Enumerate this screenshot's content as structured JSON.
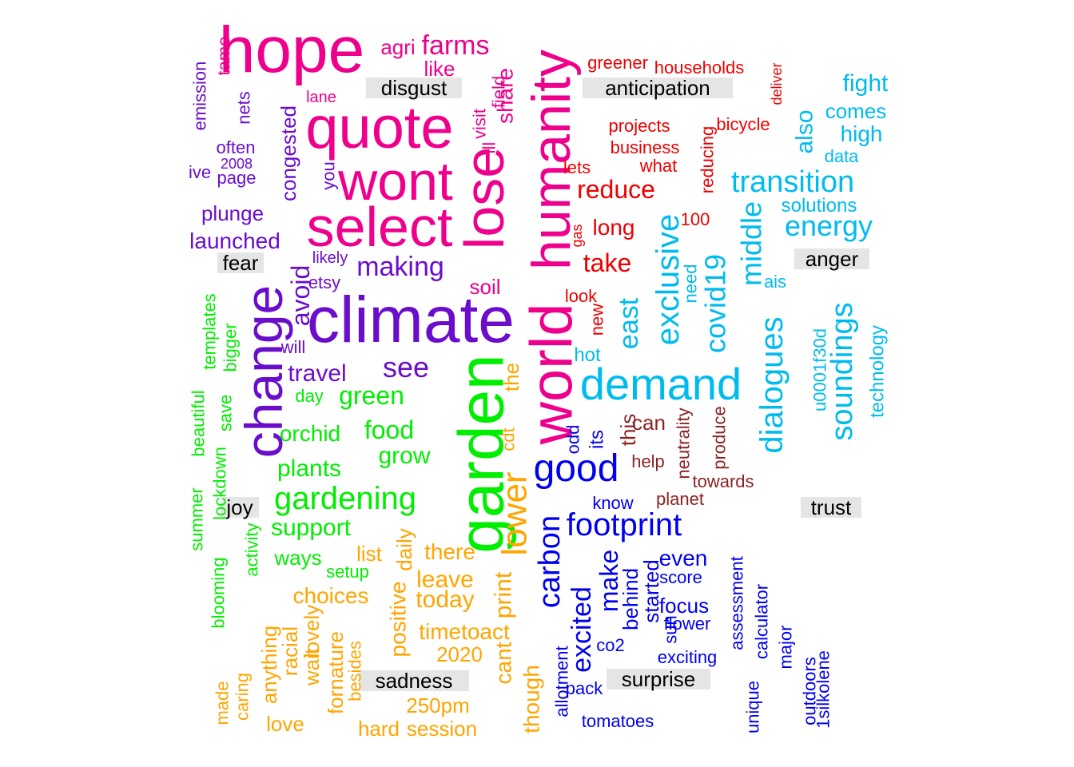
{
  "emotion_colors": {
    "disgust": "#ee008c",
    "anticipation": "#ee0000",
    "fear": "#6a0ecc",
    "anger": "#00bbee",
    "joy": "#00ee00",
    "trust": "#8b2323",
    "sadness": "#ffa500",
    "surprise": "#0000ee"
  },
  "labels": {
    "disgust": "disgust",
    "anticipation": "anticipation",
    "fear": "fear",
    "anger": "anger",
    "joy": "joy",
    "trust": "trust",
    "sadness": "sadness",
    "surprise": "surprise"
  },
  "words": [
    {
      "t": "hope",
      "e": "disgust"
    },
    {
      "t": "quote",
      "e": "disgust"
    },
    {
      "t": "wont",
      "e": "disgust"
    },
    {
      "t": "select",
      "e": "disgust"
    },
    {
      "t": "lose",
      "e": "disgust"
    },
    {
      "t": "farms",
      "e": "disgust"
    },
    {
      "t": "agri",
      "e": "disgust"
    },
    {
      "t": "like",
      "e": "disgust"
    },
    {
      "t": "visit",
      "e": "disgust"
    },
    {
      "t": "field",
      "e": "disgust"
    },
    {
      "t": "share",
      "e": "disgust"
    },
    {
      "t": "ill",
      "e": "disgust"
    },
    {
      "t": "lane",
      "e": "disgust"
    },
    {
      "t": "tame",
      "e": "disgust"
    },
    {
      "t": "soil",
      "e": "disgust"
    },
    {
      "t": "humanity",
      "e": "disgust"
    },
    {
      "t": "world",
      "e": "disgust"
    },
    {
      "t": "greener",
      "e": "anticipation"
    },
    {
      "t": "households",
      "e": "anticipation"
    },
    {
      "t": "deliver",
      "e": "anticipation"
    },
    {
      "t": "projects",
      "e": "anticipation"
    },
    {
      "t": "bicycle",
      "e": "anticipation"
    },
    {
      "t": "business",
      "e": "anticipation"
    },
    {
      "t": "what",
      "e": "anticipation"
    },
    {
      "t": "lets",
      "e": "anticipation"
    },
    {
      "t": "reducing",
      "e": "anticipation"
    },
    {
      "t": "reduce",
      "e": "anticipation"
    },
    {
      "t": "100",
      "e": "anticipation"
    },
    {
      "t": "long",
      "e": "anticipation"
    },
    {
      "t": "gas",
      "e": "anticipation"
    },
    {
      "t": "take",
      "e": "anticipation"
    },
    {
      "t": "look",
      "e": "anticipation"
    },
    {
      "t": "new",
      "e": "anticipation"
    },
    {
      "t": "emission",
      "e": "fear"
    },
    {
      "t": "nets",
      "e": "fear"
    },
    {
      "t": "congested",
      "e": "fear"
    },
    {
      "t": "often",
      "e": "fear"
    },
    {
      "t": "2008",
      "e": "fear"
    },
    {
      "t": "ive",
      "e": "fear"
    },
    {
      "t": "page",
      "e": "fear"
    },
    {
      "t": "you",
      "e": "fear"
    },
    {
      "t": "plunge",
      "e": "fear"
    },
    {
      "t": "launched",
      "e": "fear"
    },
    {
      "t": "likely",
      "e": "fear"
    },
    {
      "t": "making",
      "e": "fear"
    },
    {
      "t": "avoid",
      "e": "fear"
    },
    {
      "t": "etsy",
      "e": "fear"
    },
    {
      "t": "change",
      "e": "fear"
    },
    {
      "t": "climate",
      "e": "fear"
    },
    {
      "t": "will",
      "e": "fear"
    },
    {
      "t": "travel",
      "e": "fear"
    },
    {
      "t": "see",
      "e": "fear"
    },
    {
      "t": "fight",
      "e": "anger"
    },
    {
      "t": "comes",
      "e": "anger"
    },
    {
      "t": "high",
      "e": "anger"
    },
    {
      "t": "data",
      "e": "anger"
    },
    {
      "t": "also",
      "e": "anger"
    },
    {
      "t": "transition",
      "e": "anger"
    },
    {
      "t": "solutions",
      "e": "anger"
    },
    {
      "t": "energy",
      "e": "anger"
    },
    {
      "t": "middle",
      "e": "anger"
    },
    {
      "t": "covid19",
      "e": "anger"
    },
    {
      "t": "exclusive",
      "e": "anger"
    },
    {
      "t": "east",
      "e": "anger"
    },
    {
      "t": "need",
      "e": "anger"
    },
    {
      "t": "ais",
      "e": "anger"
    },
    {
      "t": "dialogues",
      "e": "anger"
    },
    {
      "t": "u0001f30d",
      "e": "anger"
    },
    {
      "t": "soundings",
      "e": "anger"
    },
    {
      "t": "technology",
      "e": "anger"
    },
    {
      "t": "demand",
      "e": "anger"
    },
    {
      "t": "hot",
      "e": "anger"
    },
    {
      "t": "templates",
      "e": "joy"
    },
    {
      "t": "bigger",
      "e": "joy"
    },
    {
      "t": "day",
      "e": "joy"
    },
    {
      "t": "green",
      "e": "joy"
    },
    {
      "t": "beautiful",
      "e": "joy"
    },
    {
      "t": "save",
      "e": "joy"
    },
    {
      "t": "orchid",
      "e": "joy"
    },
    {
      "t": "food",
      "e": "joy"
    },
    {
      "t": "grow",
      "e": "joy"
    },
    {
      "t": "lockdown",
      "e": "joy"
    },
    {
      "t": "plants",
      "e": "joy"
    },
    {
      "t": "gardening",
      "e": "joy"
    },
    {
      "t": "summer",
      "e": "joy"
    },
    {
      "t": "support",
      "e": "joy"
    },
    {
      "t": "activity",
      "e": "joy"
    },
    {
      "t": "ways",
      "e": "joy"
    },
    {
      "t": "setup",
      "e": "joy"
    },
    {
      "t": "blooming",
      "e": "joy"
    },
    {
      "t": "garden",
      "e": "joy"
    },
    {
      "t": "this",
      "e": "trust"
    },
    {
      "t": "can",
      "e": "trust"
    },
    {
      "t": "neutrality",
      "e": "trust"
    },
    {
      "t": "produce",
      "e": "trust"
    },
    {
      "t": "help",
      "e": "trust"
    },
    {
      "t": "towards",
      "e": "trust"
    },
    {
      "t": "planet",
      "e": "trust"
    },
    {
      "t": "the",
      "e": "sadness"
    },
    {
      "t": "cdt",
      "e": "sadness"
    },
    {
      "t": "lower",
      "e": "sadness"
    },
    {
      "t": "daily",
      "e": "sadness"
    },
    {
      "t": "list",
      "e": "sadness"
    },
    {
      "t": "there",
      "e": "sadness"
    },
    {
      "t": "leave",
      "e": "sadness"
    },
    {
      "t": "today",
      "e": "sadness"
    },
    {
      "t": "print",
      "e": "sadness"
    },
    {
      "t": "choices",
      "e": "sadness"
    },
    {
      "t": "positive",
      "e": "sadness"
    },
    {
      "t": "timetoact",
      "e": "sadness"
    },
    {
      "t": "2020",
      "e": "sadness"
    },
    {
      "t": "cant",
      "e": "sadness"
    },
    {
      "t": "anything",
      "e": "sadness"
    },
    {
      "t": "racial",
      "e": "sadness"
    },
    {
      "t": "lovely",
      "e": "sadness"
    },
    {
      "t": "wait",
      "e": "sadness"
    },
    {
      "t": "fornature",
      "e": "sadness"
    },
    {
      "t": "besides",
      "e": "sadness"
    },
    {
      "t": "made",
      "e": "sadness"
    },
    {
      "t": "caring",
      "e": "sadness"
    },
    {
      "t": "love",
      "e": "sadness"
    },
    {
      "t": "250pm",
      "e": "sadness"
    },
    {
      "t": "hard",
      "e": "sadness"
    },
    {
      "t": "session",
      "e": "sadness"
    },
    {
      "t": "though",
      "e": "sadness"
    },
    {
      "t": "good",
      "e": "surprise"
    },
    {
      "t": "its",
      "e": "surprise"
    },
    {
      "t": "odd",
      "e": "surprise"
    },
    {
      "t": "footprint",
      "e": "surprise"
    },
    {
      "t": "know",
      "e": "surprise"
    },
    {
      "t": "carbon",
      "e": "surprise"
    },
    {
      "t": "excited",
      "e": "surprise"
    },
    {
      "t": "make",
      "e": "surprise"
    },
    {
      "t": "behind",
      "e": "surprise"
    },
    {
      "t": "started",
      "e": "surprise"
    },
    {
      "t": "even",
      "e": "surprise"
    },
    {
      "t": "score",
      "e": "surprise"
    },
    {
      "t": "focus",
      "e": "surprise"
    },
    {
      "t": "flower",
      "e": "surprise"
    },
    {
      "t": "sun",
      "e": "surprise"
    },
    {
      "t": "co2",
      "e": "surprise"
    },
    {
      "t": "exciting",
      "e": "surprise"
    },
    {
      "t": "assessment",
      "e": "surprise"
    },
    {
      "t": "calculator",
      "e": "surprise"
    },
    {
      "t": "major",
      "e": "surprise"
    },
    {
      "t": "outdoors",
      "e": "surprise"
    },
    {
      "t": "1silkolene",
      "e": "surprise"
    },
    {
      "t": "unique",
      "e": "surprise"
    },
    {
      "t": "allotment",
      "e": "surprise"
    },
    {
      "t": "pack",
      "e": "surprise"
    },
    {
      "t": "tomatoes",
      "e": "surprise"
    }
  ]
}
